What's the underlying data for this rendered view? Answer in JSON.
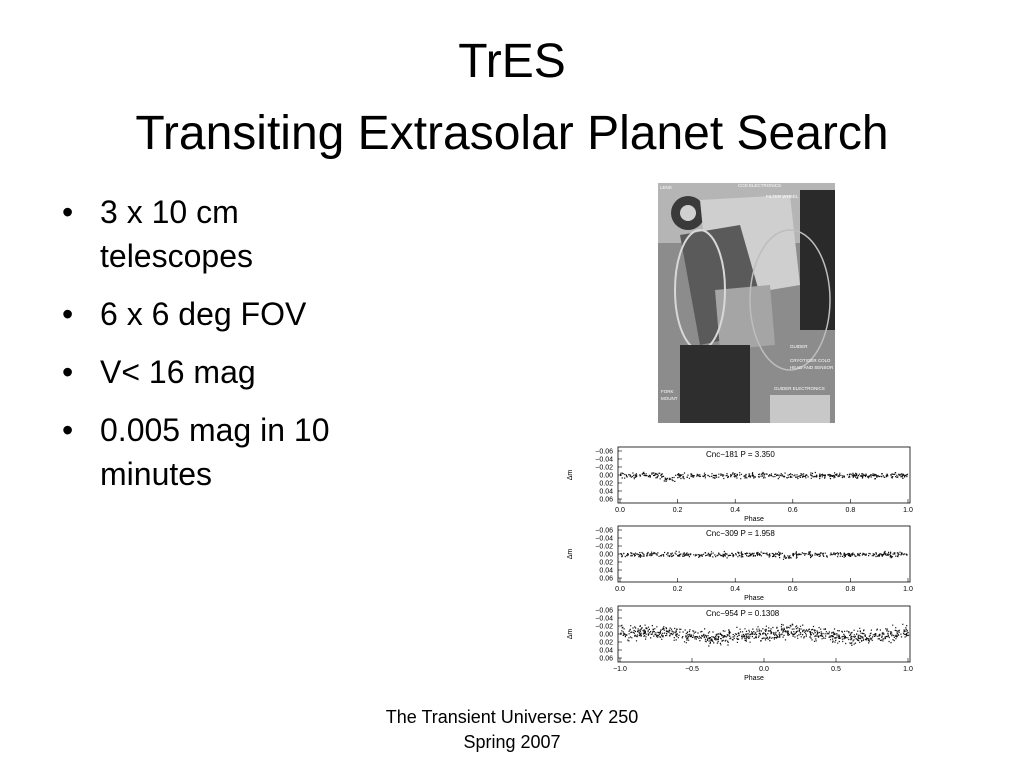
{
  "title": {
    "line1": "TrES",
    "line2": "Transiting Extrasolar Planet Search"
  },
  "bullets": [
    "3 x 10 cm telescopes",
    "6 x 6 deg FOV",
    "V< 16 mag",
    "0.005 mag in 10 minutes"
  ],
  "photo": {
    "labels": [
      "LENS",
      "CCD ELECTRONICS",
      "FILTER WHEEL",
      "GUIDER",
      "CRYOTIGER COLD",
      "HEAD AND SENSOR",
      "FORK",
      "MOUNT",
      "GUIDER ELECTRONICS"
    ]
  },
  "light_curves": {
    "y_label": "Δm",
    "x_label": "Phase",
    "y_ticks": [
      "−0.06",
      "−0.04",
      "−0.02",
      "0.00",
      "0.02",
      "0.04",
      "0.06"
    ],
    "panels": [
      {
        "label": "Cnc−181   P = 3.350",
        "x_ticks": [
          "0.0",
          "0.2",
          "0.4",
          "0.6",
          "0.8",
          "1.0"
        ]
      },
      {
        "label": "Cnc−309   P = 1.958",
        "x_ticks": [
          "0.0",
          "0.2",
          "0.4",
          "0.6",
          "0.8",
          "1.0"
        ]
      },
      {
        "label": "Cnc−954   P = 0.1308",
        "x_ticks": [
          "−1.0",
          "−0.5",
          "0.0",
          "0.5",
          "1.0"
        ]
      }
    ]
  },
  "footer": {
    "line1": "The Transient Universe:  AY 250",
    "line2": "Spring 2007"
  }
}
